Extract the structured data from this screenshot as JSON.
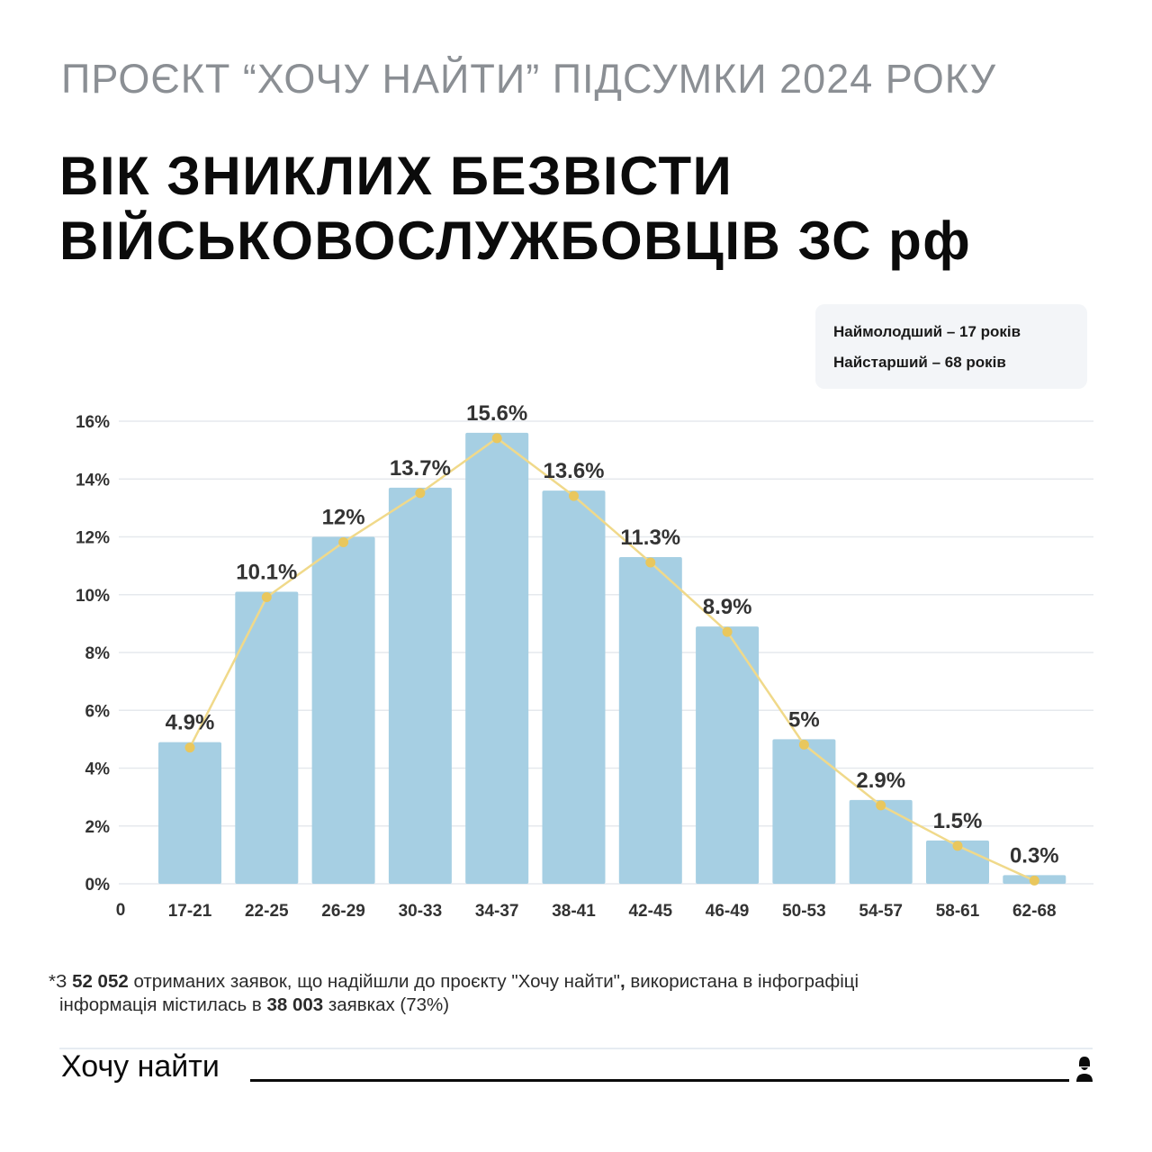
{
  "header": {
    "supertitle": "ПРОЄКТ “ХОЧУ НАЙТИ” ПІДСУМКИ 2024 РОКУ",
    "title_line1": "ВІК ЗНИКЛИХ БЕЗВІСТИ",
    "title_line2": "ВІЙСЬКОВОСЛУЖБОВЦІВ ЗС рф"
  },
  "info_box": {
    "youngest": "Наймолодший – 17 років",
    "oldest": "Найстарший – 68 років"
  },
  "chart_data": {
    "type": "bar",
    "categories": [
      "17-21",
      "22-25",
      "26-29",
      "30-33",
      "34-37",
      "38-41",
      "42-45",
      "46-49",
      "50-53",
      "54-57",
      "58-61",
      "62-68"
    ],
    "values": [
      4.9,
      10.1,
      12,
      13.7,
      15.6,
      13.6,
      11.3,
      8.9,
      5,
      2.9,
      1.5,
      0.3
    ],
    "value_labels": [
      "4.9%",
      "10.1%",
      "12%",
      "13.7%",
      "15.6%",
      "13.6%",
      "11.3%",
      "8.9%",
      "5%",
      "2.9%",
      "1.5%",
      "0.3%"
    ],
    "y_ticks": [
      0,
      2,
      4,
      6,
      8,
      10,
      12,
      14,
      16
    ],
    "y_tick_labels": [
      "0%",
      "2%",
      "4%",
      "6%",
      "8%",
      "10%",
      "12%",
      "14%",
      "16%"
    ],
    "origin_label": "0",
    "ylim": [
      0,
      16
    ],
    "overlay_line": true,
    "grid": true,
    "colors": {
      "bar": "#a6cfe3",
      "line": "#f0d98a",
      "marker": "#e9c75d",
      "grid": "#e6e9ed",
      "text": "#333333"
    }
  },
  "footnote": {
    "marker": "*",
    "part1": "З ",
    "total": "52 052",
    "part2": " отриманих заявок, що надійшли до проєкту \"Хочу найти\"",
    "comma": ",",
    "part3": " використана в інфографіці",
    "part4": "інформація містилась в ",
    "used": "38 003",
    "part5": " заявках (73%)"
  },
  "footer": {
    "brand": "Хочу найти",
    "icon": "person-bust-icon"
  }
}
